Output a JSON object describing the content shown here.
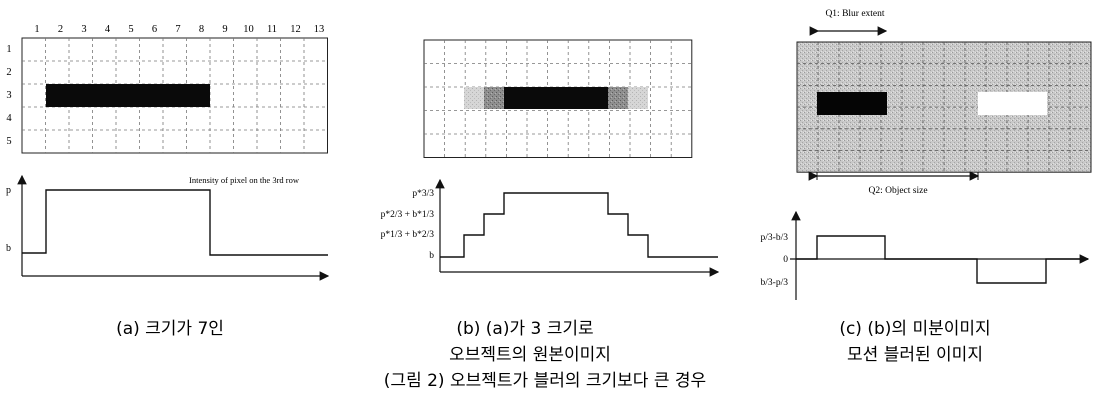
{
  "panel_a": {
    "col_numbers": [
      "1",
      "2",
      "3",
      "4",
      "5",
      "6",
      "7",
      "8",
      "9",
      "10",
      "11",
      "12",
      "13"
    ],
    "row_numbers": [
      "1",
      "2",
      "3",
      "4",
      "5"
    ],
    "intensity_title": "Intensity of pixel on the 3rd row",
    "y_labels": {
      "p": "p",
      "b": "b"
    },
    "caption": "(a) 크기가 7인"
  },
  "panel_b": {
    "y_labels": [
      "p*3/3",
      "p*2/3 + b*1/3",
      "p*1/3 + b*2/3",
      "b"
    ],
    "caption_line1": "(b) (a)가 3 크기로",
    "caption_line2": "오브젝트의 원본이미지"
  },
  "panel_c": {
    "q1_label": "Q1: Blur extent",
    "q2_label": "Q2: Object size",
    "y_labels": [
      "p/3-b/3",
      "0",
      "b/3-p/3"
    ],
    "caption_line1": "(c) (b)의 미분이미지",
    "caption_line2": "모션 블러된 이미지"
  },
  "figure_caption": "(그림 2) 오브젝트가 블러의 크기보다 큰 경우"
}
